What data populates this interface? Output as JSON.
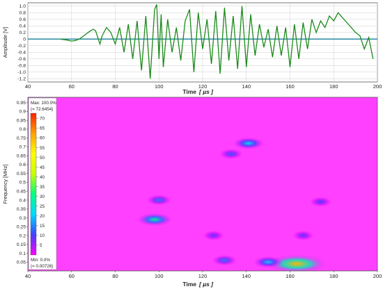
{
  "chart_data": [
    {
      "type": "line",
      "ylabel": "Amplitude [V]",
      "xlabel": "Time",
      "xlabel_unit": "[ µs ]",
      "xlim": [
        40,
        200
      ],
      "ylim": [
        -1.3,
        1.1
      ],
      "x_ticks": [
        "40",
        "60",
        "80",
        "100",
        "120",
        "140",
        "160",
        "180",
        "200"
      ],
      "y_ticks": [
        "1.0",
        "0.8",
        "0.6",
        "0.4",
        "0.2",
        "0",
        "-0.2",
        "-0.4",
        "-0.6",
        "-0.8",
        "-1.0",
        "-1.2"
      ],
      "baseline": 0,
      "grid": true,
      "colors": {
        "signal": "#1a8a1a",
        "baseline": "#2a8aa0"
      },
      "series": [
        {
          "x": [
            55,
            58,
            60,
            62,
            64,
            66,
            68,
            70,
            71,
            72,
            73,
            74,
            76,
            78,
            80,
            82,
            84,
            86,
            88,
            90,
            92,
            94,
            96,
            98,
            99,
            100,
            101,
            102,
            104,
            106,
            108,
            110,
            112,
            114,
            116,
            118,
            120,
            122,
            124,
            126,
            128,
            130,
            132,
            134,
            136,
            138,
            140,
            142,
            144,
            146,
            148,
            150,
            152,
            154,
            156,
            158,
            160,
            162,
            164,
            166,
            168,
            170,
            172,
            174,
            176,
            178,
            180,
            182,
            184,
            186,
            188,
            190,
            192,
            194,
            196,
            198
          ],
          "y": [
            0.0,
            -0.03,
            -0.06,
            -0.04,
            0.02,
            0.12,
            0.22,
            0.3,
            0.25,
            0.05,
            -0.15,
            0.1,
            0.35,
            0.2,
            -0.15,
            0.35,
            -0.4,
            0.45,
            -0.6,
            0.55,
            -0.95,
            0.7,
            -1.2,
            0.9,
            1.05,
            -0.6,
            0.75,
            -0.85,
            0.6,
            -0.4,
            0.35,
            -0.65,
            0.55,
            0.9,
            -1.0,
            0.8,
            -0.3,
            0.6,
            -0.75,
            0.85,
            -1.05,
            0.95,
            -0.65,
            0.7,
            -0.9,
            1.0,
            -0.85,
            0.75,
            -0.5,
            0.45,
            -0.25,
            0.3,
            -0.55,
            0.4,
            -0.5,
            0.35,
            -0.85,
            0.45,
            -0.6,
            0.5,
            -0.3,
            0.6,
            0.2,
            0.55,
            0.35,
            0.7,
            0.55,
            0.8,
            0.65,
            0.5,
            0.35,
            0.2,
            0.1,
            -0.3,
            0.05,
            -0.6
          ]
        }
      ]
    },
    {
      "type": "heatmap",
      "ylabel": "Frequency [MHz]",
      "xlabel": "Time",
      "xlabel_unit": "[ µs ]",
      "xlim": [
        40,
        200
      ],
      "ylim": [
        0,
        0.98
      ],
      "x_ticks": [
        "40",
        "60",
        "80",
        "100",
        "120",
        "140",
        "160",
        "180",
        "200"
      ],
      "y_ticks": [
        "0.95",
        "0.9",
        "0.85",
        "0.8",
        "0.75",
        "0.7",
        "0.65",
        "0.6",
        "0.55",
        "0.5",
        "0.45",
        "0.4",
        "0.35",
        "0.3",
        "0.25",
        "0.2",
        "0.15",
        "0.1",
        "0.05"
      ],
      "colorbar": {
        "max_label": "Max: 100.0%",
        "max_value": "(= 72.6454)",
        "min_label": "Min: 0.0%",
        "min_value": "(= 0.00726)",
        "ticks": [
          "70",
          "65",
          "60",
          "55",
          "50",
          "45",
          "40",
          "35",
          "30",
          "25",
          "20",
          "15",
          "10",
          "5"
        ],
        "scale_max": 72.6454,
        "colors": [
          "#ff00ff",
          "#4040ff",
          "#00d8ff",
          "#00ff80",
          "#c8ff00",
          "#ffff00",
          "#ffa000",
          "#ff2000"
        ]
      },
      "background_color": "#ff40ff",
      "features": [
        {
          "t": 98,
          "f": 0.29,
          "intensity": 28
        },
        {
          "t": 100,
          "f": 0.4,
          "intensity": 14
        },
        {
          "t": 141,
          "f": 0.72,
          "intensity": 22
        },
        {
          "t": 133,
          "f": 0.66,
          "intensity": 12
        },
        {
          "t": 174,
          "f": 0.39,
          "intensity": 10
        },
        {
          "t": 163,
          "f": 0.04,
          "intensity": 60
        },
        {
          "t": 150,
          "f": 0.05,
          "intensity": 20
        },
        {
          "t": 130,
          "f": 0.06,
          "intensity": 14
        },
        {
          "t": 125,
          "f": 0.2,
          "intensity": 9
        },
        {
          "t": 166,
          "f": 0.2,
          "intensity": 9
        }
      ]
    }
  ]
}
